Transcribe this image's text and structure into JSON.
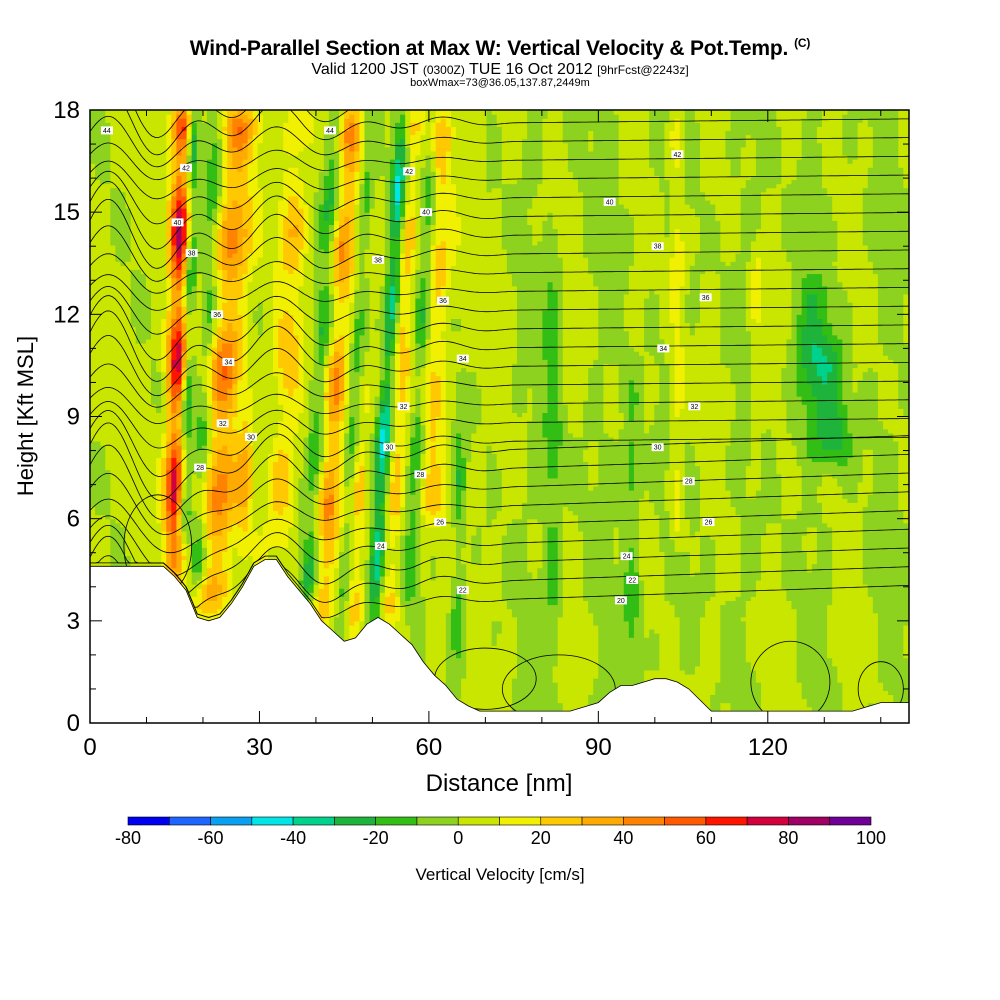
{
  "header": {
    "title": "Wind-Parallel Section at Max W: Vertical Velocity & Pot.Temp.",
    "copyright": "(C)",
    "subtitle_main_a": "Valid 1200 JST",
    "subtitle_zulu": "(0300Z)",
    "subtitle_main_b": "TUE 16 Oct 2012",
    "subtitle_fcst": "[9hrFcst@2243z]",
    "box_info": "boxWmax=73@36.05,137.87,2449m"
  },
  "chart_data": {
    "type": "heatmap",
    "title": "Wind-Parallel Section at Max W: Vertical Velocity & Pot.Temp.",
    "xlabel": "Distance [nm]",
    "ylabel": "Height [Kft MSL]",
    "xlim": [
      0,
      145
    ],
    "ylim": [
      0,
      18
    ],
    "x_ticks": [
      0,
      30,
      60,
      90,
      120
    ],
    "x_tick_labels": [
      "0",
      "30",
      "60",
      "90",
      "120"
    ],
    "y_ticks": [
      0,
      3,
      6,
      9,
      12,
      15,
      18
    ],
    "y_tick_labels": [
      "0",
      "3",
      "6",
      "9",
      "12",
      "15",
      "18"
    ],
    "colorbar": {
      "label": "Vertical Velocity [cm/s]",
      "levels": [
        -80,
        -70,
        -60,
        -50,
        -40,
        -30,
        -20,
        -10,
        0,
        10,
        20,
        30,
        40,
        50,
        60,
        70,
        80,
        90,
        100
      ],
      "tick_labels": [
        "-80",
        "-60",
        "-40",
        "-20",
        "0",
        "20",
        "40",
        "60",
        "80",
        "100"
      ],
      "tick_values": [
        -80,
        -60,
        -40,
        -20,
        0,
        20,
        40,
        60,
        80,
        100
      ],
      "colors": [
        "#0000f0",
        "#1e64ff",
        "#0aa0f0",
        "#00e6e6",
        "#00d28c",
        "#1eb43c",
        "#32be14",
        "#8cd21e",
        "#c8e600",
        "#f0f000",
        "#ffc800",
        "#ffaa00",
        "#ff8200",
        "#ff5a00",
        "#ff1400",
        "#d2003c",
        "#a00064",
        "#6e0096"
      ]
    },
    "terrain_kft": {
      "x": [
        0,
        5,
        10,
        13,
        15,
        17,
        19,
        21,
        23,
        25,
        27,
        29,
        31,
        33,
        35,
        37,
        39,
        41,
        43,
        45,
        47,
        49,
        51,
        53,
        55,
        57,
        59,
        61,
        63,
        65,
        67,
        69,
        72,
        75,
        80,
        85,
        90,
        92,
        94,
        96,
        98,
        100,
        102,
        104,
        106,
        110,
        115,
        120,
        125,
        130,
        135,
        138,
        140,
        142,
        145
      ],
      "y": [
        4.6,
        4.6,
        4.6,
        4.6,
        4.3,
        3.9,
        3.1,
        3.0,
        3.1,
        3.5,
        4.0,
        4.6,
        4.8,
        4.8,
        4.3,
        3.9,
        3.5,
        3.0,
        2.7,
        2.4,
        2.5,
        2.9,
        3.1,
        2.9,
        2.6,
        2.3,
        1.8,
        1.4,
        1.1,
        0.7,
        0.5,
        0.35,
        0.35,
        0.35,
        0.35,
        0.35,
        0.6,
        0.9,
        1.1,
        1.1,
        1.2,
        1.3,
        1.3,
        1.2,
        1.0,
        0.35,
        0.35,
        0.35,
        0.35,
        0.35,
        0.35,
        0.5,
        0.6,
        0.6,
        0.6
      ]
    },
    "updrafts": [
      {
        "x": 14.8,
        "width": 1.8,
        "top": 18,
        "bottom": 4.4,
        "peak_w": 80,
        "slope": 0.12
      },
      {
        "x": 21.5,
        "width": 3.2,
        "top": 18,
        "bottom": 3.3,
        "peak_w": 45,
        "slope": 0.35
      },
      {
        "x": 27.0,
        "width": 1.4,
        "top": 9.5,
        "bottom": 4.9,
        "peak_w": 25,
        "slope": 0.2
      },
      {
        "x": 33.5,
        "width": 2.5,
        "top": 18,
        "bottom": 4.8,
        "peak_w": 25,
        "slope": 0.25
      },
      {
        "x": 41.0,
        "width": 2.2,
        "top": 18,
        "bottom": 3.0,
        "peak_w": 40,
        "slope": 0.35
      },
      {
        "x": 46.5,
        "width": 1.4,
        "top": 10,
        "bottom": 2.6,
        "peak_w": 20,
        "slope": 0.3
      },
      {
        "x": 53.0,
        "width": 1.4,
        "top": 18,
        "bottom": 3.0,
        "peak_w": 25,
        "slope": 0.3
      },
      {
        "x": 60.5,
        "width": 2.2,
        "top": 18,
        "bottom": 6.0,
        "peak_w": 25,
        "slope": 0.15
      },
      {
        "x": 104.0,
        "width": 1.4,
        "top": 18,
        "bottom": 5.0,
        "peak_w": 20,
        "slope": 0.0
      },
      {
        "x": 118.0,
        "width": 1.0,
        "top": 14,
        "bottom": 7.0,
        "peak_w": 15,
        "slope": 0.0
      }
    ],
    "downdrafts": [
      {
        "x": 16.5,
        "width": 1.2,
        "top": 18,
        "bottom": 5.5,
        "peak_w": -40,
        "slope": 0.15
      },
      {
        "x": 19.0,
        "width": 1.5,
        "top": 18,
        "bottom": 4.0,
        "peak_w": -25,
        "slope": 0.25
      },
      {
        "x": 38.5,
        "width": 1.6,
        "top": 18,
        "bottom": 3.5,
        "peak_w": -30,
        "slope": 0.35
      },
      {
        "x": 44.5,
        "width": 1.2,
        "top": 18,
        "bottom": 3.0,
        "peak_w": -20,
        "slope": 0.35
      },
      {
        "x": 50.0,
        "width": 1.3,
        "top": 18,
        "bottom": 2.6,
        "peak_w": -45,
        "slope": 0.35
      },
      {
        "x": 56.5,
        "width": 1.3,
        "top": 18,
        "bottom": 3.5,
        "peak_w": -25,
        "slope": 0.3
      },
      {
        "x": 65.0,
        "width": 1.2,
        "top": 10,
        "bottom": 1.0,
        "peak_w": -20,
        "slope": 0.05
      },
      {
        "x": 82.0,
        "width": 1.5,
        "top": 14,
        "bottom": 2.0,
        "peak_w": -20,
        "slope": 0.0
      },
      {
        "x": 96.0,
        "width": 1.5,
        "top": 10,
        "bottom": 1.2,
        "peak_w": -20,
        "slope": 0.0
      },
      {
        "x": 128.0,
        "width": 4.0,
        "top": 13,
        "bottom": 8.0,
        "peak_w": -25,
        "slope": 0.0
      },
      {
        "x": 132.0,
        "width": 3.0,
        "top": 11,
        "bottom": 7.5,
        "peak_w": -20,
        "slope": 0.0
      }
    ],
    "theta_contour_labels": [
      {
        "x": 3,
        "y": 17.4,
        "text": "44"
      },
      {
        "x": 17,
        "y": 16.3,
        "text": "42"
      },
      {
        "x": 15.5,
        "y": 14.7,
        "text": "40"
      },
      {
        "x": 18,
        "y": 13.8,
        "text": "38"
      },
      {
        "x": 22.5,
        "y": 12.0,
        "text": "36"
      },
      {
        "x": 24.5,
        "y": 10.6,
        "text": "34"
      },
      {
        "x": 23.5,
        "y": 8.8,
        "text": "32"
      },
      {
        "x": 28.5,
        "y": 8.4,
        "text": "30"
      },
      {
        "x": 19.5,
        "y": 7.5,
        "text": "28"
      },
      {
        "x": 42.5,
        "y": 17.4,
        "text": "44"
      },
      {
        "x": 56.5,
        "y": 16.2,
        "text": "42"
      },
      {
        "x": 59.5,
        "y": 15.0,
        "text": "40"
      },
      {
        "x": 51,
        "y": 13.6,
        "text": "38"
      },
      {
        "x": 62.5,
        "y": 12.4,
        "text": "36"
      },
      {
        "x": 66,
        "y": 10.7,
        "text": "34"
      },
      {
        "x": 55.5,
        "y": 9.3,
        "text": "32"
      },
      {
        "x": 53,
        "y": 8.1,
        "text": "30"
      },
      {
        "x": 58.5,
        "y": 7.3,
        "text": "28"
      },
      {
        "x": 62,
        "y": 5.9,
        "text": "26"
      },
      {
        "x": 51.5,
        "y": 5.2,
        "text": "24"
      },
      {
        "x": 66,
        "y": 3.9,
        "text": "22"
      },
      {
        "x": 92,
        "y": 15.3,
        "text": "40"
      },
      {
        "x": 104,
        "y": 16.7,
        "text": "42"
      },
      {
        "x": 100.5,
        "y": 14.0,
        "text": "38"
      },
      {
        "x": 109,
        "y": 12.5,
        "text": "36"
      },
      {
        "x": 101.5,
        "y": 11.0,
        "text": "34"
      },
      {
        "x": 107,
        "y": 9.3,
        "text": "32"
      },
      {
        "x": 100.5,
        "y": 8.1,
        "text": "30"
      },
      {
        "x": 106,
        "y": 7.1,
        "text": "28"
      },
      {
        "x": 109.5,
        "y": 5.9,
        "text": "26"
      },
      {
        "x": 95,
        "y": 4.9,
        "text": "24"
      },
      {
        "x": 96,
        "y": 4.2,
        "text": "22"
      },
      {
        "x": 94,
        "y": 3.6,
        "text": "20"
      }
    ],
    "grid": false,
    "legend": "bottom colorbar"
  }
}
